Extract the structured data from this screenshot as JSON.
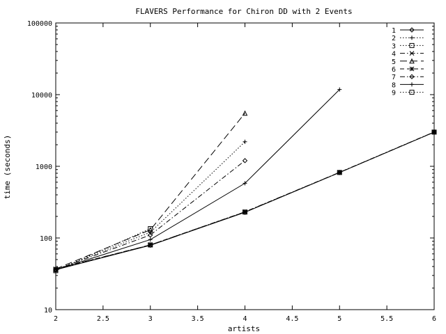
{
  "chart_data": {
    "type": "line",
    "title": "FLAVERS Performance for Chiron DD with 2 Events",
    "xlabel": "artists",
    "ylabel": "time (seconds)",
    "xlim": [
      2,
      6
    ],
    "ylim": [
      10,
      100000
    ],
    "y_scale": "log",
    "grid": false,
    "legend_position": "top-right",
    "x_ticks": [
      "2",
      "2.5",
      "3",
      "3.5",
      "4",
      "4.5",
      "5",
      "5.5",
      "6"
    ],
    "y_ticks": [
      "10",
      "100",
      "1000",
      "10000",
      "100000"
    ],
    "series": [
      {
        "name": "1",
        "marker": "diamond",
        "dash": "solid",
        "points": [
          [
            2,
            36
          ],
          [
            3,
            79
          ],
          [
            4,
            228
          ],
          [
            5,
            820
          ],
          [
            6,
            3000
          ]
        ]
      },
      {
        "name": "2",
        "marker": "plus",
        "dash": "dotted",
        "points": [
          [
            2,
            36
          ],
          [
            3,
            120
          ],
          [
            4,
            2200
          ]
        ]
      },
      {
        "name": "3",
        "marker": "square",
        "dash": "dotted",
        "points": [
          [
            2,
            36
          ],
          [
            3,
            80
          ],
          [
            4,
            230
          ],
          [
            5,
            820
          ],
          [
            6,
            3000
          ]
        ]
      },
      {
        "name": "4",
        "marker": "x",
        "dash": "dash-dot",
        "points": [
          [
            2,
            37
          ],
          [
            3,
            80
          ],
          [
            4,
            232
          ],
          [
            5,
            825
          ],
          [
            6,
            3020
          ]
        ]
      },
      {
        "name": "5",
        "marker": "triangle",
        "dash": "long-dash",
        "points": [
          [
            2,
            37
          ],
          [
            3,
            130
          ],
          [
            4,
            5500
          ]
        ]
      },
      {
        "name": "6",
        "marker": "star",
        "dash": "dash",
        "points": [
          [
            2,
            37
          ],
          [
            3,
            80
          ],
          [
            4,
            230
          ],
          [
            5,
            820
          ],
          [
            6,
            3000
          ]
        ]
      },
      {
        "name": "7",
        "marker": "diamond",
        "dash": "dash-dot",
        "points": [
          [
            2,
            36
          ],
          [
            3,
            110
          ],
          [
            4,
            1200
          ]
        ]
      },
      {
        "name": "8",
        "marker": "plus",
        "dash": "solid",
        "points": [
          [
            2,
            36
          ],
          [
            3,
            95
          ],
          [
            4,
            580
          ],
          [
            5,
            11800
          ]
        ]
      },
      {
        "name": "9",
        "marker": "square",
        "dash": "dotted",
        "points": [
          [
            2,
            35
          ],
          [
            3,
            135
          ]
        ]
      }
    ]
  }
}
